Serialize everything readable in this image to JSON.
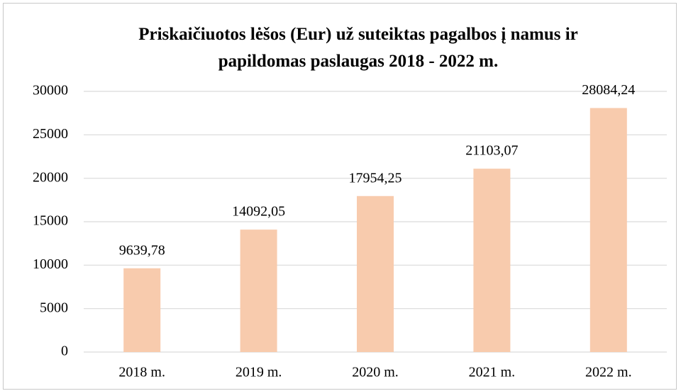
{
  "chart_data": {
    "type": "bar",
    "title": "Priskaičiuotos lėšos (Eur) už suteiktas pagalbos į namus ir papildomas paslaugas 2018 - 2022 m.",
    "categories": [
      "2018 m.",
      "2019 m.",
      "2020 m.",
      "2021 m.",
      "2022 m."
    ],
    "values": [
      9639.78,
      14092.05,
      17954.25,
      21103.07,
      28084.24
    ],
    "value_labels": [
      "9639,78",
      "14092,05",
      "17954,25",
      "21103,07",
      "28084,24"
    ],
    "color": "#f8cbad",
    "ylim": [
      0,
      30000
    ],
    "yticks": [
      0,
      5000,
      10000,
      15000,
      20000,
      25000,
      30000
    ],
    "grid": true
  }
}
